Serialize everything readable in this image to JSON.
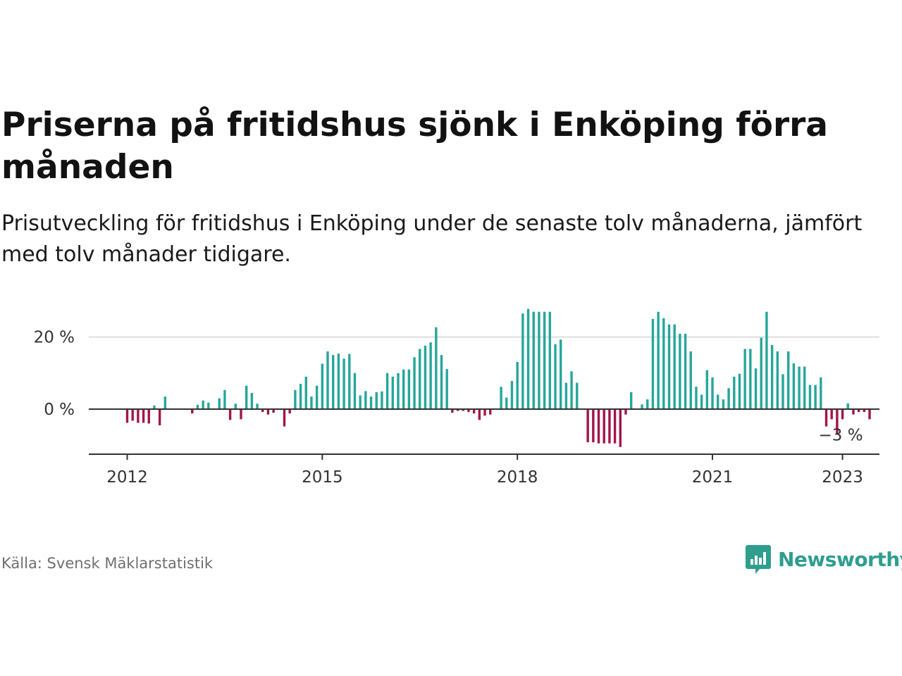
{
  "title": "Priserna på fritidshus sjönk i Enköping förra månaden",
  "subtitle": "Prisutveckling för fritidshus i Enköping under de senaste tolv månaderna, jämfört med tolv månader tidigare.",
  "source": "Källa: Svensk Mäklarstatistik",
  "brand": {
    "name": "Newsworthy",
    "icon": "newsworthy-logo-icon",
    "color": "#2e9e8f"
  },
  "colors": {
    "positive": "#26a69a",
    "negative": "#a3144a",
    "axis": "#333333",
    "grid": "#dddddd"
  },
  "chart_data": {
    "type": "bar",
    "title": "",
    "xlabel": "",
    "ylabel": "",
    "x_start": "2012-01",
    "x_ticks": [
      "2012",
      "2015",
      "2018",
      "2021",
      "2023"
    ],
    "y_ticks": [
      {
        "value": 0,
        "label": "0 %"
      },
      {
        "value": 20,
        "label": "20 %"
      }
    ],
    "ylim": [
      -12,
      30
    ],
    "grid": true,
    "annotation": {
      "text": "−3 %",
      "x": "2023-01",
      "value": -3
    },
    "series": [
      {
        "values": [
          -3.8,
          -3.2,
          -3.8,
          -3.8,
          -4.0,
          1.0,
          -4.5,
          3.5,
          0,
          0,
          0,
          0,
          -1.2,
          1.2,
          2.4,
          1.8,
          0,
          3.0,
          5.3,
          -3.0,
          1.5,
          -2.8,
          6.5,
          4.5,
          1.5,
          -0.8,
          -1.5,
          -1.0,
          0,
          -4.8,
          -1.2,
          5.3,
          7.0,
          9.0,
          3.5,
          6.5,
          12.6,
          16.0,
          15.0,
          15.4,
          14.0,
          15.3,
          10.0,
          3.8,
          5.0,
          3.5,
          4.7,
          4.9,
          10.0,
          9.0,
          10.0,
          11.0,
          11.0,
          14.4,
          16.7,
          17.6,
          18.5,
          22.7,
          15.0,
          11.1,
          -1.0,
          -0.5,
          -0.5,
          -0.8,
          -1.2,
          -3.0,
          -1.8,
          -1.5,
          0,
          6.2,
          3.2,
          7.8,
          13.1,
          26.5,
          27.8,
          27.0,
          27.0,
          27.0,
          27.0,
          18.0,
          19.3,
          7.3,
          10.5,
          7.3,
          0,
          -9.2,
          -9.2,
          -9.5,
          -9.5,
          -9.5,
          -9.5,
          -10.5,
          -1.5,
          4.7,
          0,
          1.3,
          2.7,
          25.0,
          27.0,
          25.2,
          23.5,
          23.5,
          20.9,
          20.9,
          16.0,
          6.2,
          4.0,
          10.8,
          8.8,
          4.0,
          2.7,
          5.8,
          9.0,
          9.8,
          16.7,
          16.7,
          11.3,
          19.8,
          27.0,
          17.8,
          16.0,
          9.7,
          16.0,
          12.7,
          11.8,
          11.8,
          6.7,
          6.7,
          8.8,
          -4.8,
          -2.8,
          -6.8,
          -2.8,
          1.6,
          -1.5,
          -0.8,
          -0.8,
          -2.8
        ]
      }
    ]
  }
}
